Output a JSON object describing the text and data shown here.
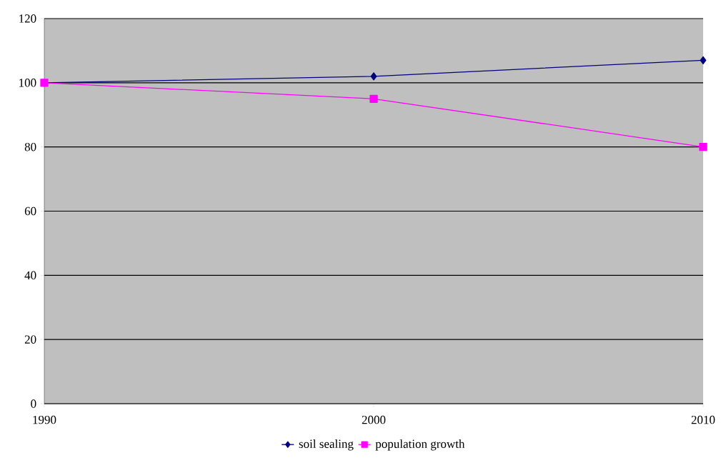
{
  "chart_data": {
    "type": "line",
    "categories": [
      "1990",
      "2000",
      "2010"
    ],
    "series": [
      {
        "name": "soil sealing",
        "color": "#000080",
        "marker": "diamond",
        "values": [
          100,
          102,
          107
        ]
      },
      {
        "name": "population growth",
        "color": "#ff00ff",
        "marker": "square",
        "values": [
          100,
          95,
          80
        ]
      }
    ],
    "ylim": [
      0,
      120
    ],
    "yticks": [
      0,
      20,
      40,
      60,
      80,
      100,
      120
    ],
    "grid": "y",
    "legend": "bottom",
    "line_style": "solid"
  }
}
